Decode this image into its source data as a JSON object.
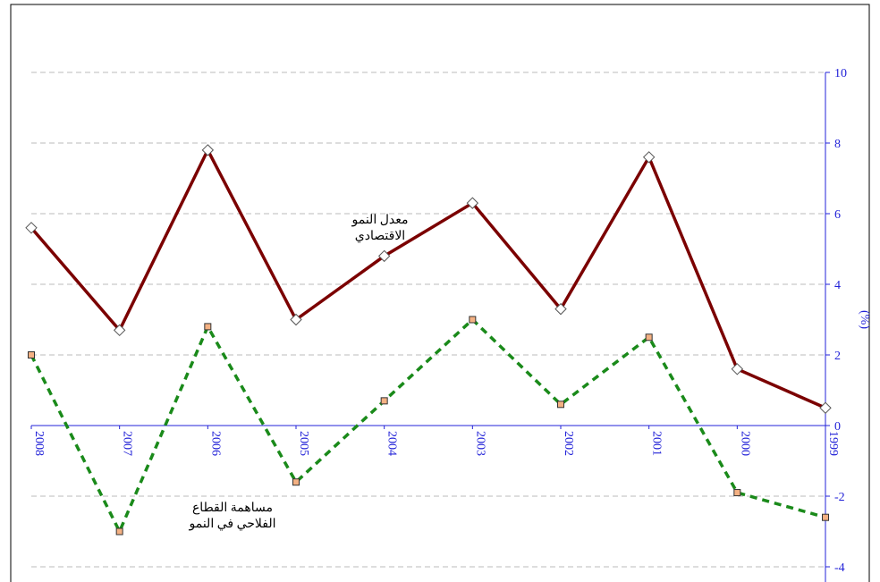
{
  "chart_data": {
    "type": "line",
    "y_label": "(%)",
    "categories": [
      "2008",
      "2007",
      "2006",
      "2005",
      "2004",
      "2003",
      "2002",
      "2001",
      "2000",
      "1999"
    ],
    "series": [
      {
        "name": "معدل النمو الاقتصادي",
        "color": "#7b0000",
        "marker_fill": "#ffffff",
        "dashed": false,
        "values": [
          5.6,
          2.7,
          7.8,
          3.0,
          4.8,
          6.3,
          3.3,
          7.6,
          1.6,
          0.5
        ]
      },
      {
        "name": "مساهمة القطاع الفلاحي في النمو",
        "color": "#1a8a1a",
        "marker_fill": "#f4b183",
        "dashed": true,
        "values": [
          2.0,
          -3.0,
          2.8,
          -1.6,
          0.7,
          3.0,
          0.6,
          2.5,
          -1.9,
          -2.6
        ]
      }
    ],
    "ylim": [
      -4,
      10
    ],
    "yticks": [
      -4,
      -2,
      0,
      2,
      4,
      6,
      8,
      10
    ],
    "grid": true,
    "y_axis_side": "right",
    "axis_color": "#2323d8"
  }
}
